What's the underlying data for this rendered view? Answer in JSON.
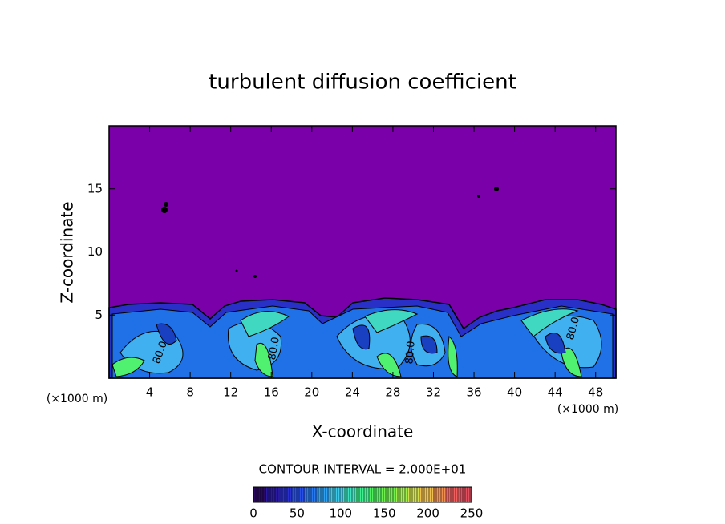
{
  "chart_data": {
    "type": "contour",
    "title": "turbulent diffusion coefficient",
    "x_label": "X-coordinate",
    "y_label": "Z-coordinate",
    "x_scale_label": "(×1000 m)",
    "y_scale_label": "(×1000 m)",
    "xlim": [
      0,
      50
    ],
    "ylim": [
      0,
      20
    ],
    "xticks": [
      4,
      8,
      12,
      16,
      20,
      24,
      28,
      32,
      36,
      40,
      44,
      48
    ],
    "yticks": [
      5,
      10,
      15
    ],
    "field_color": "#7a00aa",
    "contour_labels": [
      "80.0",
      "80.0",
      "80.0",
      "80.0"
    ],
    "colorbar": {
      "title": "CONTOUR INTERVAL = 2.000E+01",
      "lim": [
        0,
        250
      ],
      "ticks": [
        0,
        50,
        100,
        150,
        200,
        250
      ],
      "colors": [
        "#2a0a60",
        "#2a1aa0",
        "#2a30d0",
        "#2850e8",
        "#2878f0",
        "#30a0f0",
        "#40c8e8",
        "#40e0c0",
        "#40f090",
        "#50f060",
        "#70f050",
        "#a0f050",
        "#d0e050",
        "#f0c050",
        "#f09050",
        "#f06060",
        "#e05060"
      ]
    }
  }
}
